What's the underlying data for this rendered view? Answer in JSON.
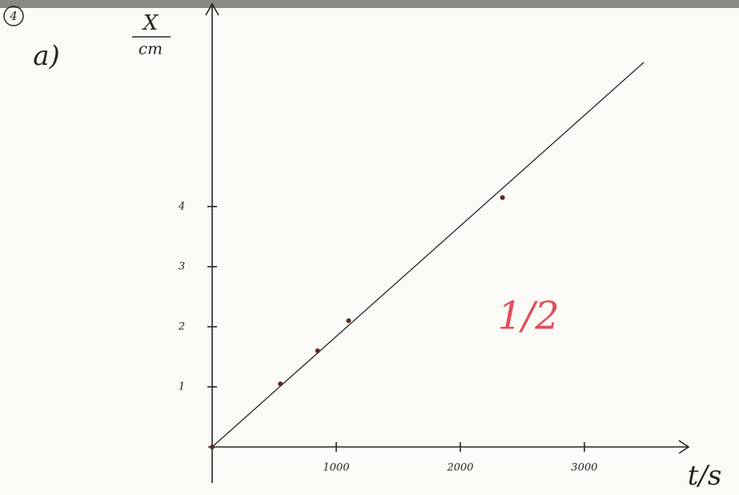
{
  "chart_data": {
    "type": "scatter",
    "problem_number": "4",
    "part_label": "a)",
    "ylabel": {
      "top": "X",
      "bottom": "cm"
    },
    "xlabel": "t/s",
    "annotation": "1/2",
    "annotation_color": "#e0505a",
    "x": [
      0,
      550,
      850,
      1100,
      2340
    ],
    "values": [
      0,
      1.05,
      1.6,
      2.1,
      4.15
    ],
    "color": "#5a2a20",
    "fit_line": {
      "x": [
        0,
        3480
      ],
      "values": [
        0,
        6.4
      ],
      "color": "#2a2420"
    },
    "xlim": [
      0,
      3840
    ],
    "ylim": [
      0,
      7.37
    ],
    "xticks": [
      1000,
      2000,
      3000
    ],
    "yticks": [
      1,
      2,
      3,
      4
    ]
  }
}
